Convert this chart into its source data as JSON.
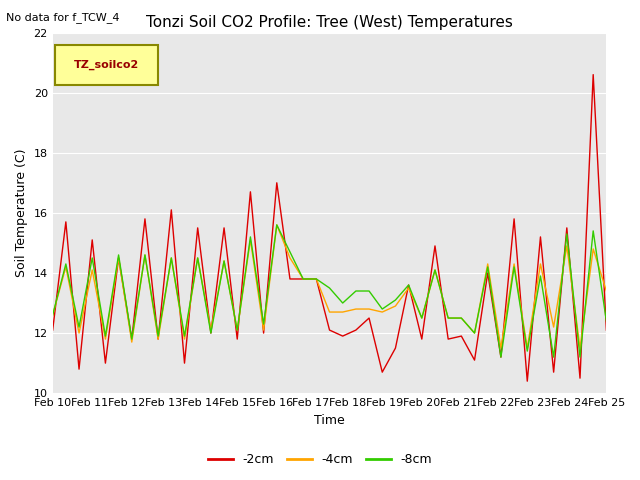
{
  "title": "Tonzi Soil CO2 Profile: Tree (West) Temperatures",
  "subtitle": "No data for f_TCW_4",
  "ylabel": "Soil Temperature (C)",
  "xlabel": "Time",
  "ylim": [
    10,
    22
  ],
  "fig_bg": "#ffffff",
  "plot_bg": "#e8e8e8",
  "grid_color": "#ffffff",
  "xtick_labels": [
    "Feb 10",
    "Feb 11",
    "Feb 12",
    "Feb 13",
    "Feb 14",
    "Feb 15",
    "Feb 16",
    "Feb 17",
    "Feb 18",
    "Feb 19",
    "Feb 20",
    "Feb 21",
    "Feb 22",
    "Feb 23",
    "Feb 24",
    "Feb 25"
  ],
  "ytick_values": [
    10,
    12,
    14,
    16,
    18,
    20,
    22
  ],
  "neg2cm_color": "#dd0000",
  "neg4cm_color": "#ffa500",
  "neg8cm_color": "#33cc00",
  "neg2cm_label": "-2cm",
  "neg4cm_label": "-4cm",
  "neg8cm_label": "-8cm",
  "neg2cm_values": [
    12.1,
    15.7,
    10.8,
    15.1,
    11.0,
    14.5,
    11.8,
    15.8,
    11.8,
    16.1,
    11.0,
    15.5,
    12.0,
    15.5,
    11.8,
    16.7,
    12.0,
    17.0,
    13.8,
    13.8,
    13.8,
    12.1,
    11.9,
    12.1,
    12.5,
    10.7,
    11.5,
    13.6,
    11.8,
    14.9,
    11.8,
    11.9,
    11.1,
    14.0,
    11.2,
    15.8,
    10.4,
    15.2,
    10.7,
    15.5,
    10.5,
    20.6,
    12.1
  ],
  "neg4cm_values": [
    12.6,
    14.2,
    12.0,
    14.1,
    11.8,
    14.5,
    11.7,
    14.6,
    11.8,
    14.5,
    11.8,
    14.5,
    12.1,
    14.4,
    12.1,
    15.1,
    12.1,
    15.6,
    14.5,
    13.8,
    13.8,
    12.7,
    12.7,
    12.8,
    12.8,
    12.7,
    12.9,
    13.5,
    12.5,
    14.1,
    12.5,
    12.5,
    12.0,
    14.3,
    11.5,
    14.3,
    11.5,
    14.3,
    12.2,
    14.9,
    11.5,
    14.8,
    13.4
  ],
  "neg8cm_values": [
    12.6,
    14.3,
    12.2,
    14.5,
    11.9,
    14.6,
    11.8,
    14.6,
    11.9,
    14.5,
    11.9,
    14.5,
    12.0,
    14.4,
    12.1,
    15.2,
    12.3,
    15.6,
    14.7,
    13.8,
    13.8,
    13.5,
    13.0,
    13.4,
    13.4,
    12.8,
    13.1,
    13.6,
    12.5,
    14.1,
    12.5,
    12.5,
    12.0,
    14.2,
    11.2,
    14.2,
    11.4,
    13.9,
    11.2,
    15.3,
    11.2,
    15.4,
    12.4
  ],
  "legend_label_box": "TZ_soilco2",
  "legend_box_facecolor": "#ffff99",
  "legend_box_edgecolor": "#888800",
  "legend_text_color": "#990000",
  "title_fontsize": 11,
  "subtitle_fontsize": 8,
  "axis_label_fontsize": 9,
  "tick_fontsize": 8,
  "legend_fontsize": 9
}
